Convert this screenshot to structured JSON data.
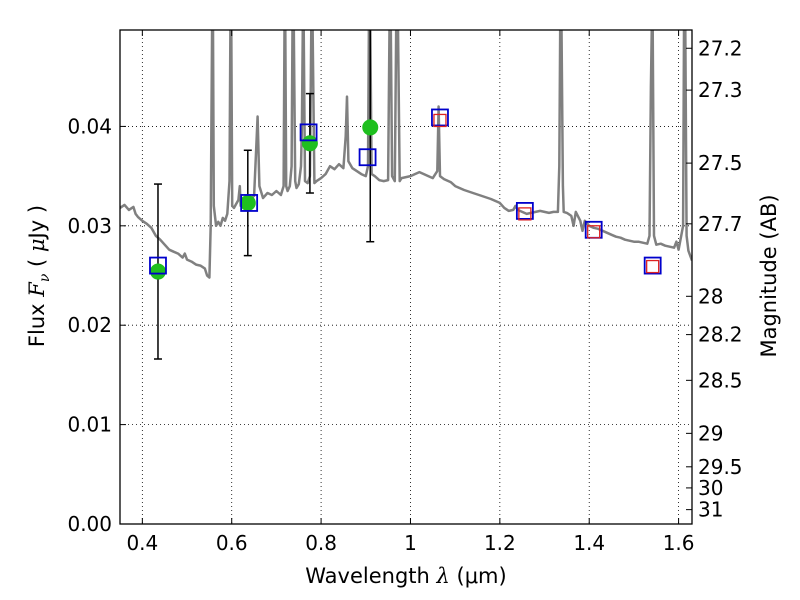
{
  "chart_data": {
    "type": "scatter",
    "xlabel": "Wavelength  λ (μm)",
    "xlabel_parts": {
      "prefix": "Wavelength  ",
      "sym": "λ",
      "unit": " (μm)"
    },
    "ylabel": "Flux  Fν  ( μJy )",
    "ylabel_parts": {
      "prefix": "Flux  ",
      "sym": "F",
      "sub": "ν",
      "mid": "  ( ",
      "mu": "μ",
      "unit": "Jy )"
    },
    "y2label": "Magnitude (AB)",
    "xlim": [
      0.35,
      1.63
    ],
    "ylim": [
      0.0,
      0.0497
    ],
    "x_ticks": [
      0.4,
      0.6,
      0.8,
      1.0,
      1.2,
      1.4,
      1.6
    ],
    "x_tick_labels": [
      "0.4",
      "0.6",
      "0.8",
      "1",
      "1.2",
      "1.4",
      "1.6"
    ],
    "y_ticks": [
      0.0,
      0.01,
      0.02,
      0.03,
      0.04
    ],
    "y_tick_labels": [
      "0.00",
      "0.01",
      "0.02",
      "0.03",
      "0.04"
    ],
    "y2_ticks": [
      27.2,
      27.3,
      27.5,
      27.7,
      28,
      28.2,
      28.5,
      29,
      29.5,
      30,
      31
    ],
    "y2_tick_labels": [
      "27.2",
      "27.3",
      "27.5",
      "27.7",
      "28",
      "28.2",
      "28.5",
      "29",
      "29.5",
      "30",
      "31"
    ],
    "grid": true,
    "colors": {
      "template": "#808080",
      "observed": "#1fbf1f",
      "model": "#0000cc",
      "model_inner": "#dd2222",
      "errorbar": "#000000"
    },
    "series": [
      {
        "kind": "line",
        "values": [
          [
            0.35,
            0.0318
          ],
          [
            0.36,
            0.0321
          ],
          [
            0.37,
            0.0316
          ],
          [
            0.38,
            0.0319
          ],
          [
            0.385,
            0.0312
          ],
          [
            0.39,
            0.0309
          ],
          [
            0.4,
            0.0305
          ],
          [
            0.41,
            0.0302
          ],
          [
            0.42,
            0.0298
          ],
          [
            0.43,
            0.029
          ],
          [
            0.44,
            0.0286
          ],
          [
            0.45,
            0.0281
          ],
          [
            0.46,
            0.0276
          ],
          [
            0.47,
            0.0274
          ],
          [
            0.48,
            0.0272
          ],
          [
            0.49,
            0.0268
          ],
          [
            0.495,
            0.0272
          ],
          [
            0.5,
            0.0266
          ],
          [
            0.51,
            0.0264
          ],
          [
            0.52,
            0.0261
          ],
          [
            0.53,
            0.026
          ],
          [
            0.54,
            0.0257
          ],
          [
            0.545,
            0.025
          ],
          [
            0.55,
            0.0248
          ],
          [
            0.553,
            0.03
          ],
          [
            0.556,
            0.05
          ],
          [
            0.558,
            0.05
          ],
          [
            0.56,
            0.032
          ],
          [
            0.565,
            0.03
          ],
          [
            0.57,
            0.0304
          ],
          [
            0.575,
            0.03
          ],
          [
            0.58,
            0.0308
          ],
          [
            0.585,
            0.0305
          ],
          [
            0.59,
            0.0312
          ],
          [
            0.595,
            0.0345
          ],
          [
            0.597,
            0.05
          ],
          [
            0.599,
            0.05
          ],
          [
            0.601,
            0.032
          ],
          [
            0.605,
            0.0318
          ],
          [
            0.61,
            0.0322
          ],
          [
            0.615,
            0.0326
          ],
          [
            0.618,
            0.034
          ],
          [
            0.62,
            0.032
          ],
          [
            0.625,
            0.0324
          ],
          [
            0.63,
            0.0322
          ],
          [
            0.64,
            0.0327
          ],
          [
            0.65,
            0.033
          ],
          [
            0.655,
            0.038
          ],
          [
            0.658,
            0.041
          ],
          [
            0.662,
            0.034
          ],
          [
            0.67,
            0.0328
          ],
          [
            0.68,
            0.0333
          ],
          [
            0.69,
            0.0331
          ],
          [
            0.7,
            0.0335
          ],
          [
            0.71,
            0.0331
          ],
          [
            0.716,
            0.034
          ],
          [
            0.718,
            0.05
          ],
          [
            0.72,
            0.05
          ],
          [
            0.722,
            0.034
          ],
          [
            0.725,
            0.0335
          ],
          [
            0.73,
            0.034
          ],
          [
            0.734,
            0.036
          ],
          [
            0.736,
            0.05
          ],
          [
            0.739,
            0.05
          ],
          [
            0.742,
            0.0345
          ],
          [
            0.745,
            0.0338
          ],
          [
            0.75,
            0.0342
          ],
          [
            0.755,
            0.036
          ],
          [
            0.757,
            0.04
          ],
          [
            0.759,
            0.05
          ],
          [
            0.761,
            0.05
          ],
          [
            0.764,
            0.0345
          ],
          [
            0.77,
            0.0343
          ],
          [
            0.775,
            0.035
          ],
          [
            0.778,
            0.05
          ],
          [
            0.781,
            0.05
          ],
          [
            0.785,
            0.0343
          ],
          [
            0.79,
            0.0345
          ],
          [
            0.8,
            0.0348
          ],
          [
            0.81,
            0.0352
          ],
          [
            0.82,
            0.036
          ],
          [
            0.83,
            0.0357
          ],
          [
            0.84,
            0.0362
          ],
          [
            0.85,
            0.0358
          ],
          [
            0.855,
            0.039
          ],
          [
            0.858,
            0.043
          ],
          [
            0.861,
            0.0365
          ],
          [
            0.87,
            0.0358
          ],
          [
            0.88,
            0.0355
          ],
          [
            0.89,
            0.0352
          ],
          [
            0.9,
            0.035
          ],
          [
            0.905,
            0.036
          ],
          [
            0.907,
            0.05
          ],
          [
            0.91,
            0.05
          ],
          [
            0.913,
            0.0352
          ],
          [
            0.92,
            0.035
          ],
          [
            0.93,
            0.0346
          ],
          [
            0.94,
            0.0345
          ],
          [
            0.95,
            0.0346
          ],
          [
            0.953,
            0.05
          ],
          [
            0.956,
            0.05
          ],
          [
            0.959,
            0.035
          ],
          [
            0.965,
            0.0345
          ],
          [
            0.968,
            0.05
          ],
          [
            0.972,
            0.05
          ],
          [
            0.976,
            0.0345
          ],
          [
            0.98,
            0.0348
          ],
          [
            0.99,
            0.0349
          ],
          [
            1.0,
            0.035
          ],
          [
            1.01,
            0.0352
          ],
          [
            1.02,
            0.0354
          ],
          [
            1.03,
            0.0352
          ],
          [
            1.04,
            0.035
          ],
          [
            1.05,
            0.0348
          ],
          [
            1.06,
            0.0355
          ],
          [
            1.063,
            0.042
          ],
          [
            1.066,
            0.035
          ],
          [
            1.075,
            0.0347
          ],
          [
            1.09,
            0.0344
          ],
          [
            1.1,
            0.034
          ],
          [
            1.12,
            0.0336
          ],
          [
            1.14,
            0.0333
          ],
          [
            1.16,
            0.033
          ],
          [
            1.18,
            0.0327
          ],
          [
            1.2,
            0.0323
          ],
          [
            1.21,
            0.0318
          ],
          [
            1.22,
            0.0315
          ],
          [
            1.23,
            0.0316
          ],
          [
            1.235,
            0.032
          ],
          [
            1.24,
            0.0316
          ],
          [
            1.25,
            0.0314
          ],
          [
            1.26,
            0.0312
          ],
          [
            1.27,
            0.0313
          ],
          [
            1.28,
            0.0314
          ],
          [
            1.29,
            0.0315
          ],
          [
            1.3,
            0.0314
          ],
          [
            1.31,
            0.0313
          ],
          [
            1.32,
            0.0314
          ],
          [
            1.33,
            0.0314
          ],
          [
            1.333,
            0.036
          ],
          [
            1.335,
            0.05
          ],
          [
            1.338,
            0.05
          ],
          [
            1.341,
            0.034
          ],
          [
            1.343,
            0.0314
          ],
          [
            1.35,
            0.0313
          ],
          [
            1.36,
            0.031
          ],
          [
            1.365,
            0.03
          ],
          [
            1.37,
            0.0314
          ],
          [
            1.38,
            0.0305
          ],
          [
            1.385,
            0.0295
          ],
          [
            1.39,
            0.0305
          ],
          [
            1.4,
            0.03
          ],
          [
            1.41,
            0.0298
          ],
          [
            1.42,
            0.0297
          ],
          [
            1.43,
            0.0295
          ],
          [
            1.44,
            0.0293
          ],
          [
            1.45,
            0.0291
          ],
          [
            1.46,
            0.0289
          ],
          [
            1.47,
            0.0288
          ],
          [
            1.48,
            0.0286
          ],
          [
            1.49,
            0.0285
          ],
          [
            1.5,
            0.0284
          ],
          [
            1.51,
            0.0284
          ],
          [
            1.52,
            0.0283
          ],
          [
            1.53,
            0.0282
          ],
          [
            1.535,
            0.029
          ],
          [
            1.538,
            0.044
          ],
          [
            1.54,
            0.05
          ],
          [
            1.542,
            0.05
          ],
          [
            1.545,
            0.029
          ],
          [
            1.55,
            0.0281
          ],
          [
            1.56,
            0.0282
          ],
          [
            1.57,
            0.028
          ],
          [
            1.58,
            0.0279
          ],
          [
            1.59,
            0.0278
          ],
          [
            1.595,
            0.0284
          ],
          [
            1.6,
            0.0276
          ],
          [
            1.61,
            0.03
          ],
          [
            1.612,
            0.05
          ],
          [
            1.615,
            0.05
          ],
          [
            1.618,
            0.029
          ],
          [
            1.622,
            0.0275
          ],
          [
            1.63,
            0.0265
          ]
        ]
      },
      {
        "kind": "observed",
        "points": [
          {
            "x": 0.435,
            "y": 0.0254,
            "yerr": 0.0088
          },
          {
            "x": 0.636,
            "y": 0.0323,
            "yerr": 0.0053
          },
          {
            "x": 0.775,
            "y": 0.0383,
            "yerr": 0.005
          },
          {
            "x": 0.91,
            "y": 0.0399,
            "yerr": 0.0115
          }
        ]
      },
      {
        "kind": "model",
        "points": [
          {
            "x": 0.435,
            "y": 0.026
          },
          {
            "x": 0.639,
            "y": 0.0323
          },
          {
            "x": 0.772,
            "y": 0.0394
          },
          {
            "x": 0.904,
            "y": 0.0369
          },
          {
            "x": 1.066,
            "y": 0.0409
          },
          {
            "x": 1.256,
            "y": 0.0315
          },
          {
            "x": 1.41,
            "y": 0.0296
          },
          {
            "x": 1.542,
            "y": 0.026
          }
        ]
      },
      {
        "kind": "model-inner",
        "points": [
          {
            "x": 1.066,
            "y": 0.0406
          },
          {
            "x": 1.256,
            "y": 0.0312
          },
          {
            "x": 1.41,
            "y": 0.0294
          },
          {
            "x": 1.542,
            "y": 0.0259
          }
        ]
      }
    ]
  }
}
